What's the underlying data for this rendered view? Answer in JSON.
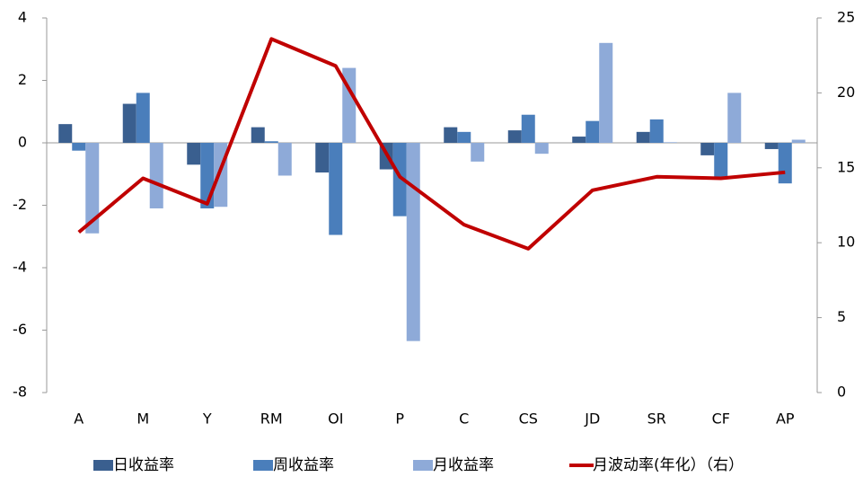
{
  "chart_data": {
    "type": "bar",
    "categories": [
      "A",
      "M",
      "Y",
      "RM",
      "OI",
      "P",
      "C",
      "CS",
      "JD",
      "SR",
      "CF",
      "AP"
    ],
    "series": [
      {
        "name": "日收益率",
        "color": "#3a5f8f",
        "values": [
          0.6,
          1.25,
          -0.7,
          0.5,
          -0.95,
          -0.85,
          0.5,
          0.4,
          0.2,
          0.35,
          -0.4,
          -0.2
        ]
      },
      {
        "name": "周收益率",
        "color": "#4a7ebb",
        "values": [
          -0.25,
          1.6,
          -2.1,
          0.05,
          -2.95,
          -2.35,
          0.35,
          0.9,
          0.7,
          0.75,
          -1.1,
          -1.3
        ]
      },
      {
        "name": "月收益率",
        "color": "#8eaad8",
        "values": [
          -2.9,
          -2.1,
          -2.05,
          -1.05,
          2.4,
          -6.35,
          -0.6,
          -0.35,
          3.2,
          0.02,
          1.6,
          0.1
        ]
      },
      {
        "name": "月波动率(年化）（右）",
        "color": "#c00000",
        "type": "line",
        "axis": "y2",
        "values": [
          10.7,
          14.3,
          12.6,
          23.6,
          21.8,
          14.4,
          11.2,
          9.6,
          13.5,
          14.4,
          14.3,
          14.7
        ]
      }
    ],
    "ylim": [
      -8,
      4
    ],
    "yticks": [
      -8,
      -6,
      -4,
      -2,
      0,
      2,
      4
    ],
    "y2lim": [
      0,
      25
    ],
    "y2ticks": [
      0,
      5,
      10,
      15,
      20,
      25
    ],
    "legend": "bottom"
  }
}
